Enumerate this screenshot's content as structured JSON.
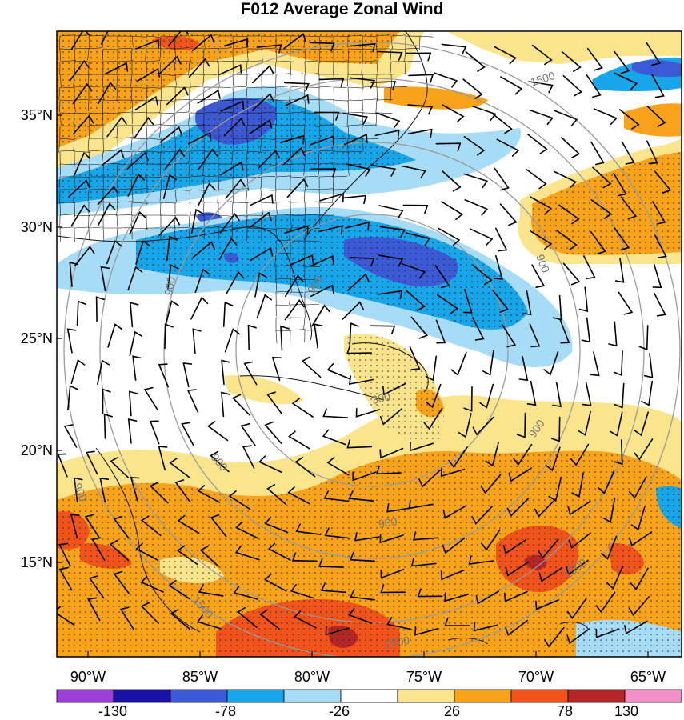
{
  "title": "F012 Average Zonal Wind",
  "map": {
    "lat_labels": [
      "35°N",
      "30°N",
      "25°N",
      "20°N",
      "15°N"
    ],
    "lon_labels": [
      "90°W",
      "85°W",
      "80°W",
      "75°W",
      "70°W",
      "65°W"
    ],
    "contour_labels": [
      "1500",
      "900",
      "300",
      "900",
      "900",
      "900",
      "900",
      "1500",
      "1500",
      "900",
      "900",
      "1500"
    ]
  },
  "colorbar": {
    "colors": [
      "#9b3fd6",
      "#1a12a6",
      "#3c5ad6",
      "#17a6ea",
      "#a7dcf6",
      "#ffffff",
      "#fbe58c",
      "#f9a31b",
      "#f2531a",
      "#b52727",
      "#f48ec6"
    ],
    "tick_labels": [
      "-130",
      "-78",
      "-26",
      "26",
      "78",
      "130"
    ]
  },
  "colors": {
    "orange": "#f9a31b",
    "light_yellow": "#fbe58c",
    "red_orange": "#f2531a",
    "dark_red": "#b52727",
    "deep_blue": "#3c5ad6",
    "mid_blue": "#17a6ea",
    "light_blue": "#a7dcf6",
    "navy": "#1a12a6"
  }
}
